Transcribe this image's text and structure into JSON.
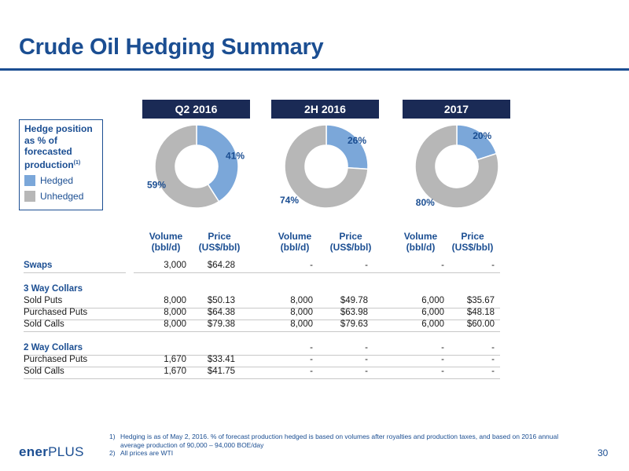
{
  "title": "Crude Oil Hedging Summary",
  "legend": {
    "title_line1": "Hedge position",
    "title_line2": "as % of",
    "title_line3": "forecasted",
    "title_line4": "production",
    "title_sup": "(1)",
    "hedged_label": "Hedged",
    "unhedged_label": "Unhedged",
    "hedged_color": "#7ba7d9",
    "unhedged_color": "#b7b7b7"
  },
  "periods": [
    {
      "name": "Q2 2016",
      "hedged_pct": 41,
      "unhedged_pct": 59,
      "hedged_label": "41%",
      "unhedged_label": "59%"
    },
    {
      "name": "2H 2016",
      "hedged_pct": 26,
      "unhedged_pct": 74,
      "hedged_label": "26%",
      "unhedged_label": "74%"
    },
    {
      "name": "2017",
      "hedged_pct": 20,
      "unhedged_pct": 80,
      "hedged_label": "20%",
      "unhedged_label": "80%"
    }
  ],
  "columns": {
    "volume_line1": "Volume",
    "volume_line2": "(bbl/d)",
    "price_line1": "Price",
    "price_line2": "(US$/bbl)"
  },
  "table": {
    "swaps": {
      "label": "Swaps",
      "values": [
        "3,000",
        "$64.28",
        "-",
        "-",
        "-",
        "-"
      ]
    },
    "three_way_header": "3 Way Collars",
    "three_way": [
      {
        "label": "Sold Puts",
        "values": [
          "8,000",
          "$50.13",
          "8,000",
          "$49.78",
          "6,000",
          "$35.67"
        ]
      },
      {
        "label": "Purchased Puts",
        "values": [
          "8,000",
          "$64.38",
          "8,000",
          "$63.98",
          "6,000",
          "$48.18"
        ]
      },
      {
        "label": "Sold Calls",
        "values": [
          "8,000",
          "$79.38",
          "8,000",
          "$79.63",
          "6,000",
          "$60.00"
        ]
      }
    ],
    "two_way_header": {
      "label": "2 Way Collars",
      "values": [
        "",
        "",
        "-",
        "-",
        "-",
        "-"
      ]
    },
    "two_way": [
      {
        "label": "Purchased Puts",
        "values": [
          "1,670",
          "$33.41",
          "-",
          "-",
          "-",
          "-"
        ]
      },
      {
        "label": "Sold Calls",
        "values": [
          "1,670",
          "$41.75",
          "-",
          "-",
          "-",
          "-"
        ]
      }
    ]
  },
  "footnotes": [
    {
      "num": "1)",
      "text": "Hedging is as of May 2, 2016. % of forecast production hedged is based on volumes after royalties and production taxes, and based on 2016 annual average production of 90,000 – 94,000 BOE/day"
    },
    {
      "num": "2)",
      "text": "All prices are WTI"
    }
  ],
  "logo": {
    "text": "ener",
    "plus": "PLUS"
  },
  "page_number": "30"
}
